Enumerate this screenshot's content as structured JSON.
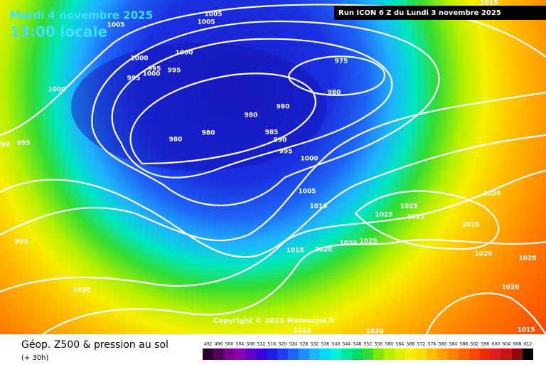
{
  "header": {
    "date": "Mardi 4 novembre 2025",
    "time": "13:00 locale",
    "run": "Run ICON 6 Z du Lundi 3 novembre 2025"
  },
  "copyright": "Copyright © 2025 Meteociel.fr",
  "footer": {
    "title": "Géop. Z500 & pression au sol",
    "lead": "(+ 30h)"
  },
  "legend": {
    "levels": [
      492,
      496,
      500,
      504,
      508,
      512,
      516,
      520,
      524,
      528,
      532,
      536,
      540,
      544,
      548,
      552,
      556,
      560,
      564,
      568,
      572,
      576,
      580,
      584,
      588,
      592,
      596,
      600,
      604,
      608,
      612
    ],
    "colors": [
      "#2a0030",
      "#50005a",
      "#7a0090",
      "#8c00b4",
      "#6000c8",
      "#3c00dc",
      "#1e1ee6",
      "#1e3cf0",
      "#1e64f5",
      "#1e8cff",
      "#1eb4ff",
      "#00dcff",
      "#00f0dc",
      "#00e6a0",
      "#00dc64",
      "#32dc32",
      "#82e600",
      "#b4f000",
      "#dcf000",
      "#f5f000",
      "#ffdc00",
      "#ffbe00",
      "#ffa000",
      "#ff8200",
      "#ff6400",
      "#ff4600",
      "#f02800",
      "#dc1e1e",
      "#c81414",
      "#8c0a0a",
      "#000000"
    ]
  },
  "isobar_labels": [
    1005,
    1005,
    1005,
    1000,
    1000,
    995,
    995,
    1000,
    995,
    1000,
    975,
    980,
    980,
    980,
    980,
    980,
    985,
    990,
    995,
    1000,
    1005,
    1010,
    1015,
    1020,
    1020,
    1025,
    1025,
    1025,
    1025,
    1025,
    1020,
    1020,
    1020,
    1020,
    1020,
    995,
    990,
    995,
    1020,
    1015,
    1015,
    1015
  ]
}
